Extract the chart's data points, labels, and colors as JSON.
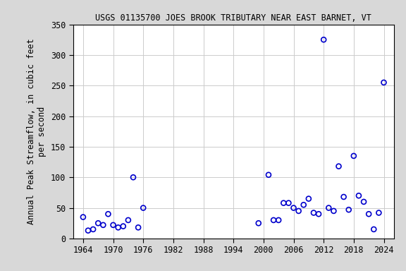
{
  "title": "USGS 01135700 JOES BROOK TRIBUTARY NEAR EAST BARNET, VT",
  "ylabel_line1": "Annual Peak Streamflow, in cubic feet",
  "ylabel_line2": "per second",
  "years": [
    1964,
    1965,
    1966,
    1967,
    1968,
    1969,
    1970,
    1971,
    1972,
    1973,
    1974,
    1975,
    1976,
    1999,
    2001,
    2002,
    2003,
    2004,
    2005,
    2006,
    2007,
    2008,
    2009,
    2010,
    2011,
    2012,
    2013,
    2014,
    2015,
    2016,
    2017,
    2018,
    2019,
    2020,
    2021,
    2022,
    2023,
    2024
  ],
  "flows": [
    35,
    13,
    15,
    25,
    22,
    40,
    22,
    18,
    20,
    30,
    100,
    18,
    50,
    25,
    104,
    30,
    30,
    58,
    58,
    50,
    45,
    55,
    65,
    42,
    40,
    325,
    50,
    45,
    118,
    68,
    47,
    135,
    70,
    60,
    40,
    15,
    42,
    255
  ],
  "marker_color": "#0000cc",
  "marker_size": 5,
  "marker_lw": 1.2,
  "xlim": [
    1962,
    2026
  ],
  "ylim": [
    0,
    350
  ],
  "xticks": [
    1964,
    1970,
    1976,
    1982,
    1988,
    1994,
    2000,
    2006,
    2012,
    2018,
    2024
  ],
  "yticks": [
    0,
    50,
    100,
    150,
    200,
    250,
    300,
    350
  ],
  "grid_color": "#cccccc",
  "plot_bg_color": "#ffffff",
  "fig_bg_color": "#d8d8d8",
  "title_fontsize": 8.5,
  "label_fontsize": 8.5,
  "tick_fontsize": 8.5
}
